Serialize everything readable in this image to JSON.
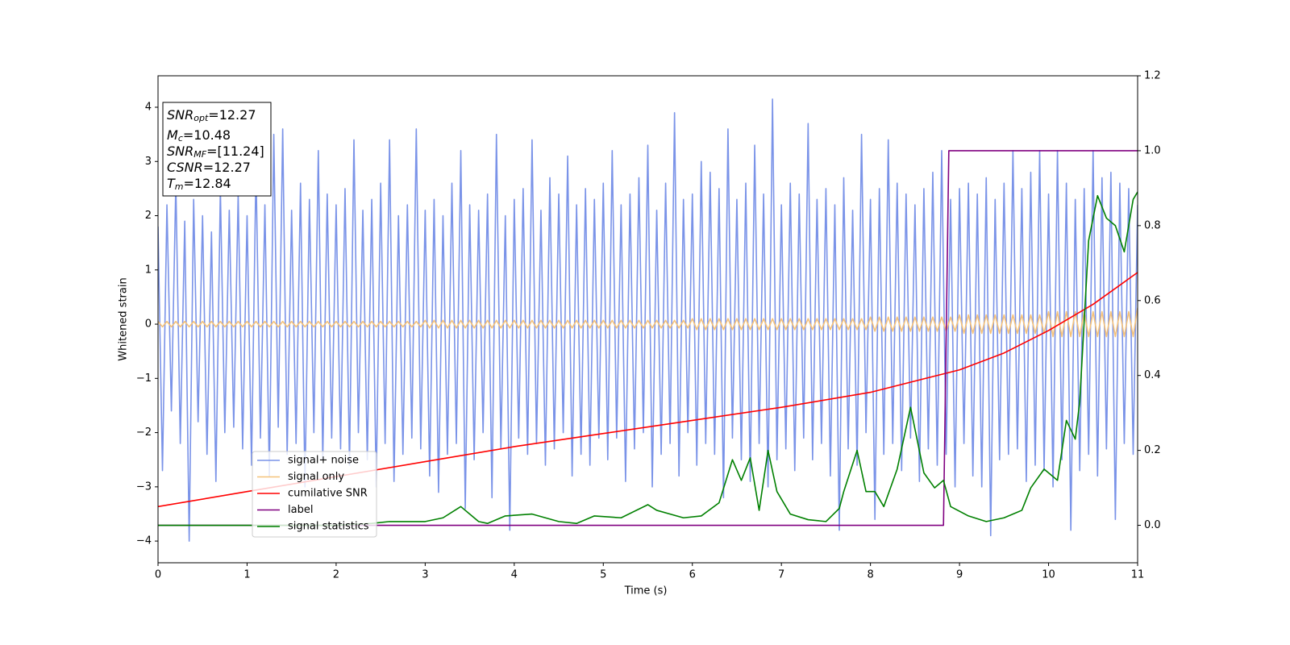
{
  "chart_data": {
    "type": "line",
    "xlabel": "Time (s)",
    "ylabel": "Whitened strain",
    "xlim": [
      0,
      11
    ],
    "xticks": [
      0,
      1,
      2,
      3,
      4,
      5,
      6,
      7,
      8,
      9,
      10,
      11
    ],
    "ylim": [
      -4.4,
      4.58
    ],
    "yticks": [
      -4,
      -3,
      -2,
      -1,
      0,
      1,
      2,
      3,
      4
    ],
    "y2lim": [
      -0.1,
      1.2
    ],
    "y2ticks": [
      {
        "value": 0,
        "label": "0.0"
      },
      {
        "value": 0.2,
        "label": "0.2"
      },
      {
        "value": 0.4,
        "label": "0.4"
      },
      {
        "value": 0.6,
        "label": "0.6"
      },
      {
        "value": 0.8,
        "label": "0.8"
      },
      {
        "value": 1,
        "label": "1.0"
      },
      {
        "value": 1.2,
        "label": "1.2"
      }
    ],
    "legend": "lower left",
    "annotation": [
      {
        "text": "SNR",
        "sub": "opt",
        "value": "=12.27"
      },
      {
        "text": "M",
        "sub": "c",
        "value": "=10.48"
      },
      {
        "text": "SNR",
        "sub": "MF",
        "value": "=[11.24]"
      },
      {
        "text": "CSNR",
        "value": "=12.27"
      },
      {
        "text": "T",
        "sub": "m",
        "value": "=12.84"
      }
    ],
    "series": [
      {
        "name": "signal+ noise",
        "color": "#7a93e8",
        "x": [
          0,
          0.05,
          0.1,
          0.15,
          0.2,
          0.25,
          0.3,
          0.35,
          0.4,
          0.45,
          0.5,
          0.55,
          0.6,
          0.65,
          0.7,
          0.75,
          0.8,
          0.85,
          0.9,
          0.95,
          1,
          1.05,
          1.1,
          1.15,
          1.2,
          1.25,
          1.3,
          1.35,
          1.4,
          1.45,
          1.5,
          1.55,
          1.6,
          1.65,
          1.7,
          1.75,
          1.8,
          1.85,
          1.9,
          1.95,
          2,
          2.05,
          2.1,
          2.15,
          2.2,
          2.25,
          2.3,
          2.35,
          2.4,
          2.45,
          2.5,
          2.55,
          2.6,
          2.65,
          2.7,
          2.75,
          2.8,
          2.85,
          2.9,
          2.95,
          3,
          3.05,
          3.1,
          3.15,
          3.2,
          3.25,
          3.3,
          3.35,
          3.4,
          3.45,
          3.5,
          3.55,
          3.6,
          3.65,
          3.7,
          3.75,
          3.8,
          3.85,
          3.9,
          3.95,
          4,
          4.05,
          4.1,
          4.15,
          4.2,
          4.25,
          4.3,
          4.35,
          4.4,
          4.45,
          4.5,
          4.55,
          4.6,
          4.65,
          4.7,
          4.75,
          4.8,
          4.85,
          4.9,
          4.95,
          5,
          5.05,
          5.1,
          5.15,
          5.2,
          5.25,
          5.3,
          5.35,
          5.4,
          5.45,
          5.5,
          5.55,
          5.6,
          5.65,
          5.7,
          5.75,
          5.8,
          5.85,
          5.9,
          5.95,
          6,
          6.05,
          6.1,
          6.15,
          6.2,
          6.25,
          6.3,
          6.35,
          6.4,
          6.45,
          6.5,
          6.55,
          6.6,
          6.65,
          6.7,
          6.75,
          6.8,
          6.85,
          6.9,
          6.95,
          7,
          7.05,
          7.1,
          7.15,
          7.2,
          7.25,
          7.3,
          7.35,
          7.4,
          7.45,
          7.5,
          7.55,
          7.6,
          7.65,
          7.7,
          7.75,
          7.8,
          7.85,
          7.9,
          7.95,
          8,
          8.05,
          8.1,
          8.15,
          8.2,
          8.25,
          8.3,
          8.35,
          8.4,
          8.45,
          8.5,
          8.55,
          8.6,
          8.65,
          8.7,
          8.75,
          8.8,
          8.85,
          8.9,
          8.95,
          9,
          9.05,
          9.1,
          9.15,
          9.2,
          9.25,
          9.3,
          9.35,
          9.4,
          9.45,
          9.5,
          9.55,
          9.6,
          9.65,
          9.7,
          9.75,
          9.8,
          9.85,
          9.9,
          9.95,
          10,
          10.05,
          10.1,
          10.15,
          10.2,
          10.25,
          10.3,
          10.35,
          10.4,
          10.45,
          10.5,
          10.55,
          10.6,
          10.65,
          10.7,
          10.75,
          10.8,
          10.85,
          10.9,
          10.95,
          11
        ],
        "values": [
          1.8,
          -2.7,
          2.2,
          -1.6,
          2.6,
          -2.2,
          1.9,
          -4.0,
          2.3,
          -1.8,
          2.0,
          -2.4,
          1.7,
          -2.9,
          2.5,
          -2.0,
          2.1,
          -1.9,
          2.4,
          -2.3,
          2.0,
          -2.6,
          2.9,
          -2.1,
          2.2,
          -2.8,
          3.5,
          -1.9,
          3.6,
          -2.4,
          2.1,
          -2.2,
          2.6,
          -3.0,
          2.3,
          -2.0,
          3.2,
          -2.5,
          2.4,
          -2.1,
          2.2,
          -2.3,
          2.5,
          -2.6,
          3.4,
          -2.0,
          2.1,
          -2.5,
          2.3,
          -3.0,
          2.6,
          -2.2,
          3.4,
          -2.9,
          2.0,
          -2.4,
          2.2,
          -2.1,
          3.6,
          -2.3,
          2.1,
          -2.8,
          2.3,
          -3.1,
          2.0,
          -2.4,
          2.6,
          -2.2,
          3.2,
          -3.4,
          2.2,
          -2.5,
          2.1,
          -2.0,
          2.4,
          -3.2,
          3.5,
          -2.3,
          2.0,
          -3.8,
          2.3,
          -2.1,
          2.5,
          -2.4,
          3.4,
          -2.2,
          2.1,
          -2.6,
          2.7,
          -2.3,
          2.4,
          -2.0,
          3.1,
          -2.8,
          2.2,
          -2.4,
          2.5,
          -2.6,
          2.3,
          -2.1,
          2.6,
          -2.5,
          3.2,
          -2.1,
          2.2,
          -2.9,
          2.4,
          -2.3,
          2.7,
          -2.0,
          3.3,
          -3.0,
          2.1,
          -2.4,
          2.6,
          -2.2,
          3.9,
          -2.8,
          2.3,
          -2.0,
          2.4,
          -2.6,
          3.0,
          -2.2,
          2.8,
          -2.4,
          2.5,
          -3.2,
          3.6,
          -2.1,
          2.3,
          -2.5,
          2.6,
          -2.9,
          3.3,
          -2.2,
          2.4,
          -3.0,
          4.15,
          -2.5,
          2.2,
          -2.3,
          2.6,
          -2.7,
          2.4,
          -2.1,
          3.7,
          -2.5,
          2.3,
          -2.2,
          2.5,
          -2.8,
          2.2,
          -3.8,
          2.7,
          -2.3,
          2.1,
          -2.6,
          3.5,
          -2.0,
          2.3,
          -3.6,
          2.5,
          -2.4,
          3.4,
          -2.2,
          2.6,
          -2.7,
          2.4,
          -2.1,
          2.2,
          -2.9,
          2.5,
          -2.3,
          2.8,
          -2.6,
          3.2,
          -2.4,
          2.3,
          -3.0,
          2.5,
          -2.2,
          2.6,
          -2.8,
          2.4,
          -3.0,
          2.7,
          -3.9,
          2.3,
          -2.5,
          2.6,
          -2.4,
          3.2,
          -2.3,
          2.5,
          -2.9,
          2.8,
          -2.6,
          3.2,
          -2.7,
          2.4,
          -3.0,
          3.2,
          -2.5,
          2.6,
          -3.8,
          2.3,
          -2.7,
          2.5,
          -2.4,
          3.2,
          -2.8,
          2.7,
          -2.3,
          2.8,
          -3.6,
          2.6,
          -2.2,
          2.5,
          -2.4,
          2.2
        ]
      },
      {
        "name": "signal only",
        "color": "#f5c27a",
        "x": [
          0,
          0.05,
          0.1,
          0.15,
          0.2,
          0.25,
          0.3,
          0.35,
          0.4,
          0.45,
          0.5,
          0.55,
          0.6,
          0.65,
          0.7,
          0.75,
          0.8,
          0.85,
          0.9,
          0.95,
          1,
          1.05,
          1.1,
          1.15,
          1.2,
          1.25,
          1.3,
          1.35,
          1.4,
          1.45,
          1.5,
          1.55,
          1.6,
          1.65,
          1.7,
          1.75,
          1.8,
          1.85,
          1.9,
          1.95,
          2,
          2.05,
          2.1,
          2.15,
          2.2,
          2.25,
          2.3,
          2.35,
          2.4,
          2.45,
          2.5,
          2.55,
          2.6,
          2.65,
          2.7,
          2.75,
          2.8,
          2.85,
          2.9,
          2.95,
          3,
          3.05,
          3.1,
          3.15,
          3.2,
          3.25,
          3.3,
          3.35,
          3.4,
          3.45,
          3.5,
          3.55,
          3.6,
          3.65,
          3.7,
          3.75,
          3.8,
          3.85,
          3.9,
          3.95,
          4,
          4.05,
          4.1,
          4.15,
          4.2,
          4.25,
          4.3,
          4.35,
          4.4,
          4.45,
          4.5,
          4.55,
          4.6,
          4.65,
          4.7,
          4.75,
          4.8,
          4.85,
          4.9,
          4.95,
          5,
          5.05,
          5.1,
          5.15,
          5.2,
          5.25,
          5.3,
          5.35,
          5.4,
          5.45,
          5.5,
          5.55,
          5.6,
          5.65,
          5.7,
          5.75,
          5.8,
          5.85,
          5.9,
          5.95,
          6,
          6.05,
          6.1,
          6.15,
          6.2,
          6.25,
          6.3,
          6.35,
          6.4,
          6.45,
          6.5,
          6.55,
          6.6,
          6.65,
          6.7,
          6.75,
          6.8,
          6.85,
          6.9,
          6.95,
          7,
          7.05,
          7.1,
          7.15,
          7.2,
          7.25,
          7.3,
          7.35,
          7.4,
          7.45,
          7.5,
          7.55,
          7.6,
          7.65,
          7.7,
          7.75,
          7.8,
          7.85,
          7.9,
          7.95,
          8,
          8.05,
          8.1,
          8.15,
          8.2,
          8.25,
          8.3,
          8.35,
          8.4,
          8.45,
          8.5,
          8.55,
          8.6,
          8.65,
          8.7,
          8.75,
          8.8,
          8.85,
          8.9,
          8.95,
          9,
          9.05,
          9.1,
          9.15,
          9.2,
          9.25,
          9.3,
          9.35,
          9.4,
          9.45,
          9.5,
          9.55,
          9.6,
          9.65,
          9.7,
          9.75,
          9.8,
          9.85,
          9.9,
          9.95,
          10,
          10.05,
          10.1,
          10.15,
          10.2,
          10.25,
          10.3,
          10.35,
          10.4,
          10.45,
          10.5,
          10.55,
          10.6,
          10.65,
          10.7,
          10.75,
          10.8,
          10.85,
          10.9,
          10.95,
          11
        ],
        "values": [
          0.05,
          -0.05,
          0.05,
          -0.05,
          0.05,
          -0.05,
          0.05,
          -0.05,
          0.05,
          -0.05,
          0.05,
          -0.05,
          0.05,
          -0.05,
          0.05,
          -0.05,
          0.05,
          -0.05,
          0.05,
          -0.05,
          0.05,
          -0.05,
          0.05,
          -0.05,
          0.05,
          -0.05,
          0.05,
          -0.05,
          0.05,
          -0.05,
          0.05,
          -0.05,
          0.05,
          -0.05,
          0.05,
          -0.05,
          0.05,
          -0.05,
          0.05,
          -0.05,
          0.05,
          -0.05,
          0.05,
          -0.05,
          0.05,
          -0.05,
          0.05,
          -0.05,
          0.05,
          -0.05,
          0.05,
          -0.05,
          0.05,
          -0.05,
          0.05,
          -0.05,
          0.05,
          -0.05,
          0.05,
          -0.05,
          0.07,
          -0.07,
          0.07,
          -0.07,
          0.07,
          -0.07,
          0.07,
          -0.07,
          0.07,
          -0.07,
          0.07,
          -0.07,
          0.07,
          -0.07,
          0.07,
          -0.07,
          0.07,
          -0.07,
          0.07,
          -0.07,
          0.07,
          -0.07,
          0.07,
          -0.07,
          0.07,
          -0.07,
          0.07,
          -0.07,
          0.07,
          -0.07,
          0.07,
          -0.07,
          0.07,
          -0.07,
          0.07,
          -0.07,
          0.07,
          -0.07,
          0.07,
          -0.07,
          0.07,
          -0.07,
          0.07,
          -0.07,
          0.07,
          -0.07,
          0.07,
          -0.07,
          0.07,
          -0.07,
          0.07,
          -0.07,
          0.07,
          -0.07,
          0.07,
          -0.07,
          0.07,
          -0.07,
          0.07,
          -0.07,
          0.1,
          -0.1,
          0.1,
          -0.1,
          0.1,
          -0.1,
          0.1,
          -0.1,
          0.1,
          -0.1,
          0.1,
          -0.1,
          0.1,
          -0.1,
          0.1,
          -0.1,
          0.1,
          -0.1,
          0.1,
          -0.1,
          0.1,
          -0.1,
          0.1,
          -0.1,
          0.1,
          -0.1,
          0.1,
          -0.1,
          0.1,
          -0.1,
          0.1,
          -0.1,
          0.1,
          -0.1,
          0.1,
          -0.1,
          0.1,
          -0.1,
          0.1,
          -0.1,
          0.13,
          -0.13,
          0.13,
          -0.13,
          0.13,
          -0.13,
          0.13,
          -0.13,
          0.13,
          -0.13,
          0.13,
          -0.13,
          0.13,
          -0.13,
          0.13,
          -0.13,
          0.13,
          -0.13,
          0.13,
          -0.13,
          0.17,
          -0.17,
          0.17,
          -0.17,
          0.17,
          -0.17,
          0.17,
          -0.17,
          0.17,
          -0.17,
          0.17,
          -0.17,
          0.17,
          -0.17,
          0.17,
          -0.17,
          0.17,
          -0.17,
          0.17,
          -0.17,
          0.23,
          -0.23,
          0.23,
          -0.23,
          0.23,
          -0.23,
          0.23,
          -0.23,
          0.23,
          -0.23,
          0.23,
          -0.23,
          0.23,
          -0.23,
          0.23,
          -0.23,
          0.23,
          -0.23,
          0.23,
          -0.23,
          0.3
        ]
      },
      {
        "name": "cumilative SNR",
        "color": "#ff0000",
        "axis": "y2",
        "x": [
          0,
          1,
          2,
          3,
          4,
          5,
          6,
          7,
          8,
          9,
          9.5,
          10,
          10.5,
          11
        ],
        "values": [
          0.05,
          0.09,
          0.13,
          0.17,
          0.21,
          0.245,
          0.28,
          0.315,
          0.355,
          0.415,
          0.46,
          0.52,
          0.59,
          0.675
        ]
      },
      {
        "name": "label",
        "color": "#800080",
        "axis": "y2",
        "x": [
          0,
          8.82,
          8.88,
          11
        ],
        "values": [
          0,
          0,
          1,
          1
        ]
      },
      {
        "name": "signal statistics",
        "color": "#008000",
        "axis": "y2",
        "x": [
          0,
          2,
          2.4,
          2.6,
          3,
          3.2,
          3.4,
          3.6,
          3.7,
          3.9,
          4.2,
          4.5,
          4.7,
          4.9,
          5.2,
          5.5,
          5.6,
          5.9,
          6.1,
          6.3,
          6.45,
          6.55,
          6.65,
          6.75,
          6.85,
          6.95,
          7.1,
          7.3,
          7.5,
          7.65,
          7.7,
          7.85,
          7.95,
          8.05,
          8.15,
          8.3,
          8.45,
          8.6,
          8.72,
          8.82,
          8.9,
          9.1,
          9.3,
          9.5,
          9.7,
          9.8,
          9.95,
          10.1,
          10.2,
          10.3,
          10.35,
          10.45,
          10.55,
          10.65,
          10.75,
          10.85,
          10.95,
          11
        ],
        "values": [
          0,
          0,
          0.005,
          0.01,
          0.01,
          0.02,
          0.05,
          0.01,
          0.005,
          0.025,
          0.03,
          0.01,
          0.005,
          0.025,
          0.02,
          0.055,
          0.04,
          0.02,
          0.025,
          0.06,
          0.175,
          0.12,
          0.18,
          0.04,
          0.2,
          0.09,
          0.03,
          0.015,
          0.01,
          0.045,
          0.09,
          0.2,
          0.09,
          0.09,
          0.05,
          0.15,
          0.315,
          0.14,
          0.1,
          0.12,
          0.05,
          0.025,
          0.01,
          0.02,
          0.04,
          0.1,
          0.15,
          0.12,
          0.28,
          0.23,
          0.33,
          0.76,
          0.88,
          0.82,
          0.8,
          0.73,
          0.87,
          0.89
        ]
      }
    ]
  }
}
